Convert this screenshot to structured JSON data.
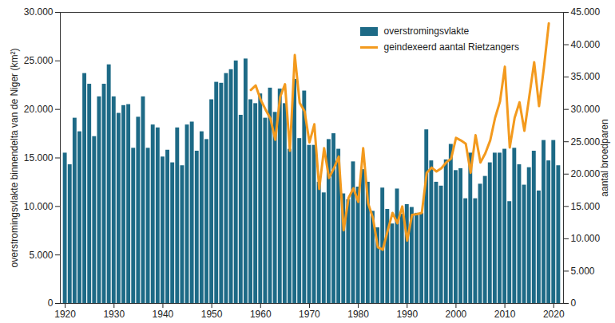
{
  "chart_data": {
    "type": "bar",
    "x": [
      1920,
      1921,
      1922,
      1923,
      1924,
      1925,
      1926,
      1927,
      1928,
      1929,
      1930,
      1931,
      1932,
      1933,
      1934,
      1935,
      1936,
      1937,
      1938,
      1939,
      1940,
      1941,
      1942,
      1943,
      1944,
      1945,
      1946,
      1947,
      1948,
      1949,
      1950,
      1951,
      1952,
      1953,
      1954,
      1955,
      1956,
      1957,
      1958,
      1959,
      1960,
      1961,
      1962,
      1963,
      1964,
      1965,
      1966,
      1967,
      1968,
      1969,
      1970,
      1971,
      1972,
      1973,
      1974,
      1975,
      1976,
      1977,
      1978,
      1979,
      1980,
      1981,
      1982,
      1983,
      1984,
      1985,
      1986,
      1987,
      1988,
      1989,
      1990,
      1991,
      1992,
      1993,
      1994,
      1995,
      1996,
      1997,
      1998,
      1999,
      2000,
      2001,
      2002,
      2003,
      2004,
      2005,
      2006,
      2007,
      2008,
      2009,
      2010,
      2011,
      2012,
      2013,
      2014,
      2015,
      2016,
      2017,
      2018,
      2019,
      2020,
      2021
    ],
    "xlim": [
      1919,
      2022
    ],
    "xticks": [
      1920,
      1930,
      1940,
      1950,
      1960,
      1970,
      1980,
      1990,
      2000,
      2010,
      2020
    ],
    "y_label": "overstromingsvlakte binnendelta van de Niger (km²)",
    "ylim": [
      0,
      30000
    ],
    "yticks": [
      0,
      {
        "value": 5000,
        "label": "5.000"
      },
      {
        "value": 10000,
        "label": "10.000"
      },
      {
        "value": 15000,
        "label": "15.000"
      },
      {
        "value": 20000,
        "label": "20.000"
      },
      {
        "value": 25000,
        "label": "25.000"
      },
      {
        "value": 30000,
        "label": "30.000"
      }
    ],
    "y2_label": "aantal broedparen",
    "y2lim": [
      0,
      45000
    ],
    "y2ticks": [
      0,
      {
        "value": 5000,
        "label": "5.000"
      },
      {
        "value": 10000,
        "label": "10.000"
      },
      {
        "value": 15000,
        "label": "15.000"
      },
      {
        "value": 20000,
        "label": "20.000"
      },
      {
        "value": 25000,
        "label": "25.000"
      },
      {
        "value": 30000,
        "label": "30.000"
      },
      {
        "value": 35000,
        "label": "35.000"
      },
      {
        "value": 40000,
        "label": "40.000"
      },
      {
        "value": 45000,
        "label": "45.000"
      }
    ],
    "legend": "upper right",
    "grid": false,
    "series": [
      {
        "name": "overstromingsvlakte",
        "type": "bar",
        "color": "#1d6a86",
        "values": [
          15500,
          14300,
          19100,
          17700,
          23700,
          22600,
          17200,
          21300,
          22600,
          24600,
          21300,
          19600,
          20400,
          20500,
          16000,
          19200,
          21300,
          16000,
          18400,
          18100,
          15100,
          15800,
          14500,
          18100,
          14200,
          18400,
          18700,
          15700,
          17700,
          16900,
          21000,
          22800,
          22700,
          23700,
          24100,
          25000,
          19400,
          25200,
          21000,
          20600,
          21600,
          19100,
          22200,
          19700,
          22100,
          20600,
          15900,
          23100,
          17000,
          21900,
          16300,
          16300,
          12500,
          11400,
          16900,
          17500,
          15900,
          11300,
          10700,
          14600,
          12000,
          13800,
          12500,
          9500,
          7800,
          11900,
          9700,
          8200,
          11800,
          9200,
          10200,
          9900,
          9300,
          9300,
          17900,
          14700,
          12500,
          12100,
          14800,
          16400,
          13700,
          13900,
          10800,
          15500,
          10800,
          12300,
          13100,
          14500,
          15500,
          15500,
          15900,
          10500,
          16000,
          14300,
          12200,
          14000,
          15700,
          11600,
          16800,
          14700,
          16800,
          14200
        ]
      },
      {
        "name": "geindexeerd aantal Rietzangers",
        "type": "line",
        "axis": "y2",
        "color": "#f39a1e",
        "values": [
          null,
          null,
          null,
          null,
          null,
          null,
          null,
          null,
          null,
          null,
          null,
          null,
          null,
          null,
          null,
          null,
          null,
          null,
          null,
          null,
          null,
          null,
          null,
          null,
          null,
          null,
          null,
          null,
          null,
          null,
          null,
          null,
          null,
          null,
          null,
          null,
          null,
          null,
          33000,
          33700,
          31500,
          30000,
          28600,
          25300,
          31900,
          33900,
          23600,
          38400,
          31000,
          29700,
          24900,
          27700,
          17700,
          24000,
          19400,
          20900,
          22700,
          11300,
          16300,
          17800,
          15700,
          24000,
          15500,
          13200,
          8700,
          8300,
          11200,
          14000,
          12400,
          15000,
          9700,
          13700,
          13800,
          14000,
          20200,
          21000,
          20400,
          20900,
          21800,
          22400,
          25600,
          25200,
          24700,
          20200,
          26000,
          21800,
          23200,
          25200,
          28700,
          31200,
          36600,
          24100,
          28700,
          31100,
          26700,
          32000,
          37300,
          30500,
          36500,
          43300,
          null,
          null
        ]
      }
    ]
  }
}
